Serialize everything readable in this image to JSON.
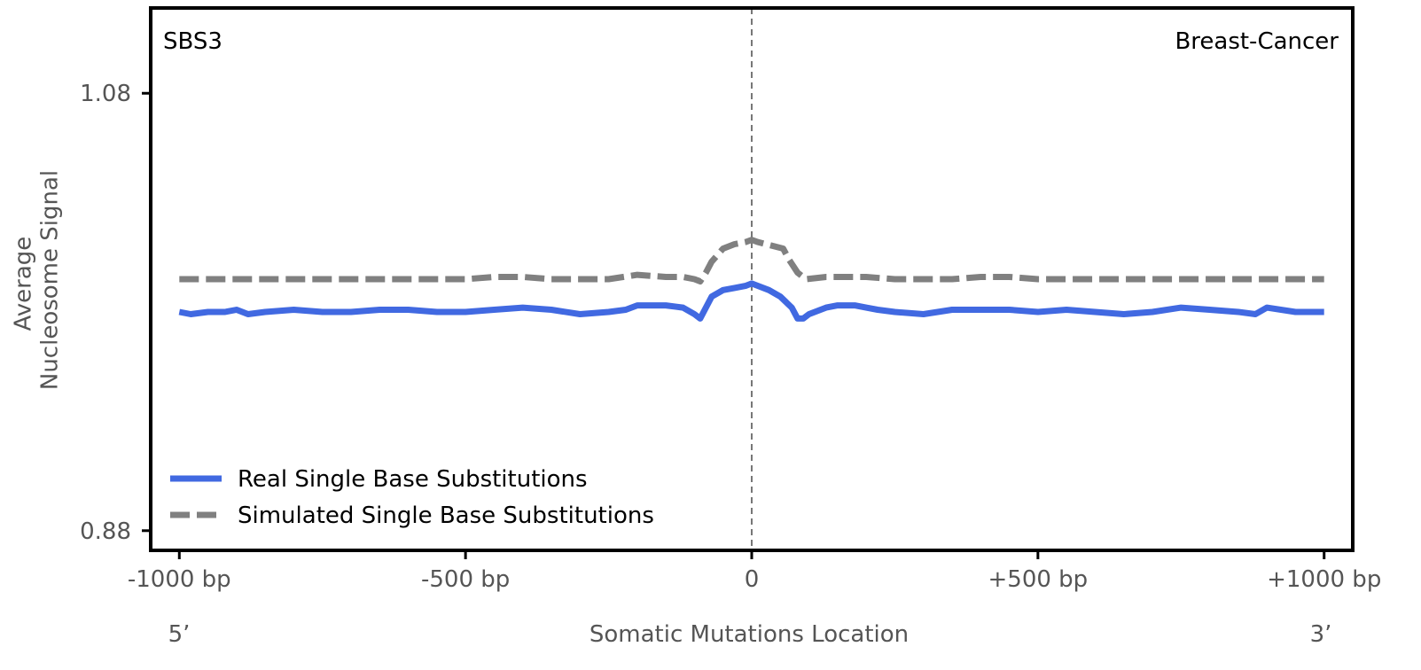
{
  "chart_data": {
    "type": "line",
    "title": "",
    "panel_labels": {
      "left": "SBS3",
      "right": "Breast-Cancer"
    },
    "xlabel": "Somatic Mutations Location",
    "ylabel_lines": [
      "Average",
      "Nucleosome Signal"
    ],
    "x_end_labels": {
      "left": "5’",
      "right": "3’"
    },
    "xlim": [
      -1050,
      1050
    ],
    "ylim": [
      0.871,
      1.119
    ],
    "x_ticks": [
      -1000,
      -500,
      0,
      500,
      1000
    ],
    "x_tick_labels": [
      "-1000 bp",
      "-500 bp",
      "0",
      "+500 bp",
      "+1000 bp"
    ],
    "y_ticks": [
      0.88,
      1.08
    ],
    "y_tick_labels": [
      "0.88",
      "1.08"
    ],
    "center_line": 0,
    "legend_position": "lower-left",
    "series": [
      {
        "name": "Real Single Base Substitutions",
        "color": "#4169e1",
        "style": "solid",
        "points": [
          [
            -1000,
            0.98
          ],
          [
            -980,
            0.979
          ],
          [
            -950,
            0.98
          ],
          [
            -920,
            0.98
          ],
          [
            -900,
            0.981
          ],
          [
            -880,
            0.979
          ],
          [
            -850,
            0.98
          ],
          [
            -800,
            0.981
          ],
          [
            -750,
            0.98
          ],
          [
            -700,
            0.98
          ],
          [
            -650,
            0.981
          ],
          [
            -600,
            0.981
          ],
          [
            -550,
            0.98
          ],
          [
            -500,
            0.98
          ],
          [
            -450,
            0.981
          ],
          [
            -400,
            0.982
          ],
          [
            -350,
            0.981
          ],
          [
            -300,
            0.979
          ],
          [
            -250,
            0.98
          ],
          [
            -220,
            0.981
          ],
          [
            -200,
            0.983
          ],
          [
            -150,
            0.983
          ],
          [
            -120,
            0.982
          ],
          [
            -100,
            0.979
          ],
          [
            -90,
            0.977
          ],
          [
            -80,
            0.982
          ],
          [
            -70,
            0.987
          ],
          [
            -50,
            0.99
          ],
          [
            -30,
            0.991
          ],
          [
            -10,
            0.992
          ],
          [
            0,
            0.993
          ],
          [
            10,
            0.992
          ],
          [
            30,
            0.99
          ],
          [
            50,
            0.987
          ],
          [
            70,
            0.982
          ],
          [
            80,
            0.977
          ],
          [
            90,
            0.977
          ],
          [
            100,
            0.979
          ],
          [
            130,
            0.982
          ],
          [
            150,
            0.983
          ],
          [
            180,
            0.983
          ],
          [
            200,
            0.982
          ],
          [
            220,
            0.981
          ],
          [
            250,
            0.98
          ],
          [
            300,
            0.979
          ],
          [
            350,
            0.981
          ],
          [
            400,
            0.981
          ],
          [
            450,
            0.981
          ],
          [
            500,
            0.98
          ],
          [
            550,
            0.981
          ],
          [
            600,
            0.98
          ],
          [
            650,
            0.979
          ],
          [
            700,
            0.98
          ],
          [
            750,
            0.982
          ],
          [
            800,
            0.981
          ],
          [
            850,
            0.98
          ],
          [
            880,
            0.979
          ],
          [
            900,
            0.982
          ],
          [
            950,
            0.98
          ],
          [
            1000,
            0.98
          ]
        ]
      },
      {
        "name": "Simulated Single Base Substitutions",
        "color": "#808080",
        "style": "dashed",
        "points": [
          [
            -1000,
            0.995
          ],
          [
            -950,
            0.995
          ],
          [
            -900,
            0.995
          ],
          [
            -850,
            0.995
          ],
          [
            -800,
            0.995
          ],
          [
            -750,
            0.995
          ],
          [
            -700,
            0.995
          ],
          [
            -650,
            0.995
          ],
          [
            -600,
            0.995
          ],
          [
            -550,
            0.995
          ],
          [
            -500,
            0.995
          ],
          [
            -450,
            0.996
          ],
          [
            -400,
            0.996
          ],
          [
            -350,
            0.995
          ],
          [
            -300,
            0.995
          ],
          [
            -250,
            0.995
          ],
          [
            -200,
            0.997
          ],
          [
            -150,
            0.996
          ],
          [
            -120,
            0.996
          ],
          [
            -100,
            0.995
          ],
          [
            -90,
            0.994
          ],
          [
            -80,
            0.998
          ],
          [
            -70,
            1.003
          ],
          [
            -50,
            1.009
          ],
          [
            -30,
            1.011
          ],
          [
            -10,
            1.012
          ],
          [
            0,
            1.013
          ],
          [
            10,
            1.012
          ],
          [
            40,
            1.01
          ],
          [
            55,
            1.009
          ],
          [
            65,
            1.004
          ],
          [
            80,
            0.998
          ],
          [
            95,
            0.995
          ],
          [
            130,
            0.996
          ],
          [
            200,
            0.996
          ],
          [
            250,
            0.995
          ],
          [
            300,
            0.995
          ],
          [
            350,
            0.995
          ],
          [
            400,
            0.996
          ],
          [
            450,
            0.996
          ],
          [
            500,
            0.995
          ],
          [
            550,
            0.995
          ],
          [
            600,
            0.995
          ],
          [
            650,
            0.995
          ],
          [
            700,
            0.995
          ],
          [
            750,
            0.995
          ],
          [
            800,
            0.995
          ],
          [
            850,
            0.995
          ],
          [
            900,
            0.995
          ],
          [
            950,
            0.995
          ],
          [
            1000,
            0.995
          ]
        ]
      }
    ]
  }
}
